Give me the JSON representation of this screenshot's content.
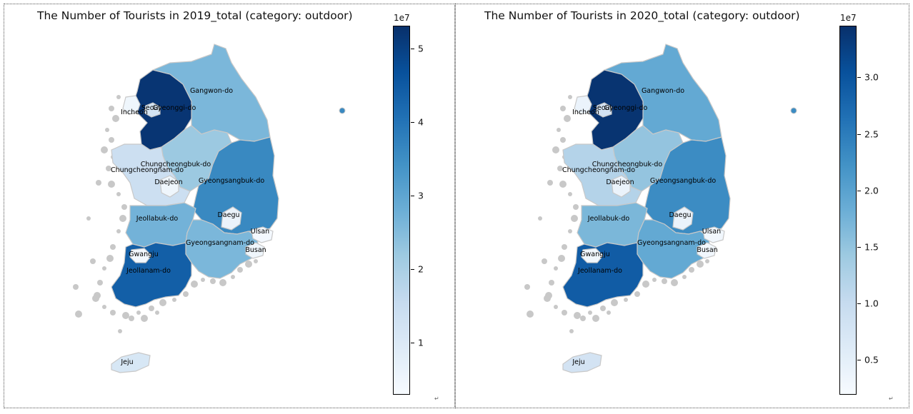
{
  "chart_data": [
    {
      "type": "choropleth",
      "title": "The Number of Tourists in 2019_total (category: outdoor)",
      "colormap": "Blues",
      "colorbar": {
        "multiplier": "1e7",
        "min": 0.3,
        "max": 5.3,
        "ticks": [
          1,
          2,
          3,
          4,
          5
        ],
        "tick_labels": [
          "1",
          "2",
          "3",
          "4",
          "5"
        ]
      },
      "regions": [
        {
          "name": "Seoul",
          "value": 1.2
        },
        {
          "name": "Incheon",
          "value": 0.5
        },
        {
          "name": "Gyeonggi-do",
          "value": 5.2
        },
        {
          "name": "Gangwon-do",
          "value": 2.6
        },
        {
          "name": "Chungcheongbuk-do",
          "value": 2.2
        },
        {
          "name": "Chungcheongnam-do",
          "value": 1.4
        },
        {
          "name": "Daejeon",
          "value": 0.5
        },
        {
          "name": "Gyeongsangbuk-do",
          "value": 3.6
        },
        {
          "name": "Daegu",
          "value": 0.6
        },
        {
          "name": "Jeollabuk-do",
          "value": 2.7
        },
        {
          "name": "Ulsan",
          "value": 0.4
        },
        {
          "name": "Gyeongsangnam-do",
          "value": 2.6
        },
        {
          "name": "Busan",
          "value": 0.5
        },
        {
          "name": "Gwangju",
          "value": 0.4
        },
        {
          "name": "Jeollanam-do",
          "value": 4.4
        },
        {
          "name": "Jeju",
          "value": 1.1
        }
      ]
    },
    {
      "type": "choropleth",
      "title": "The Number of Tourists in 2020_total (category: outdoor)",
      "colormap": "Blues",
      "colorbar": {
        "multiplier": "1e7",
        "min": 0.2,
        "max": 3.45,
        "ticks": [
          0.5,
          1.0,
          1.5,
          2.0,
          2.5,
          3.0
        ],
        "tick_labels": [
          "0.5",
          "1.0",
          "1.5",
          "2.0",
          "2.5",
          "3.0"
        ]
      },
      "regions": [
        {
          "name": "Seoul",
          "value": 0.8
        },
        {
          "name": "Incheon",
          "value": 0.4
        },
        {
          "name": "Gyeonggi-do",
          "value": 3.4
        },
        {
          "name": "Gangwon-do",
          "value": 1.9
        },
        {
          "name": "Chungcheongbuk-do",
          "value": 1.5
        },
        {
          "name": "Chungcheongnam-do",
          "value": 1.2
        },
        {
          "name": "Daejeon",
          "value": 0.4
        },
        {
          "name": "Gyeongsangbuk-do",
          "value": 2.3
        },
        {
          "name": "Daegu",
          "value": 0.4
        },
        {
          "name": "Jeollabuk-do",
          "value": 1.7
        },
        {
          "name": "Ulsan",
          "value": 0.3
        },
        {
          "name": "Gyeongsangnam-do",
          "value": 1.9
        },
        {
          "name": "Busan",
          "value": 0.3
        },
        {
          "name": "Gwangju",
          "value": 0.3
        },
        {
          "name": "Jeollanam-do",
          "value": 2.9
        },
        {
          "name": "Jeju",
          "value": 0.8
        }
      ]
    }
  ],
  "colors": {
    "blues": [
      "#f7fbff",
      "#deebf7",
      "#c6dbef",
      "#9ecae1",
      "#6baed6",
      "#4292c6",
      "#2171b5",
      "#08519c",
      "#08306b"
    ],
    "border": "#c8c8c8",
    "island_grey": "#c8c8c8"
  },
  "mark_glyph": "↵"
}
